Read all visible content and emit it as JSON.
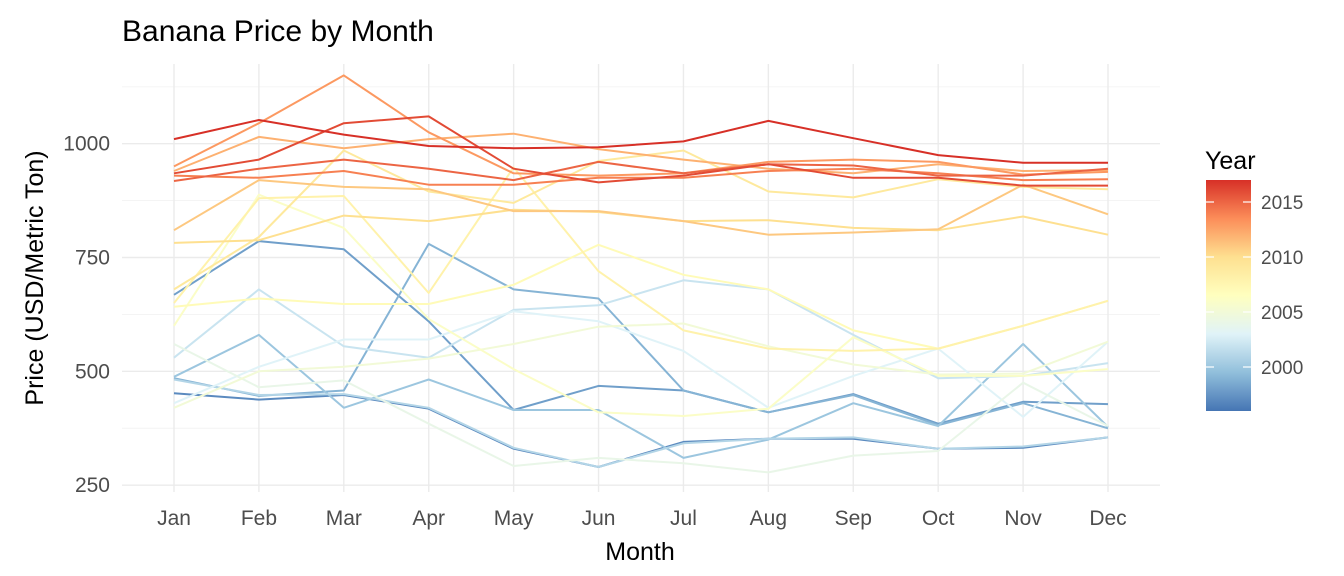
{
  "chart_data": {
    "type": "line",
    "title": "Banana Price by Month",
    "xlabel": "Month",
    "ylabel": "Price (USD/Metric Ton)",
    "categories": [
      "Jan",
      "Feb",
      "Mar",
      "Apr",
      "May",
      "Jun",
      "Jul",
      "Aug",
      "Sep",
      "Oct",
      "Nov",
      "Dec"
    ],
    "ylim": [
      235,
      1175
    ],
    "yticks": [
      250,
      500,
      750,
      1000
    ],
    "grid": true,
    "legend": {
      "title": "Year",
      "placement": "right",
      "type": "colorbar",
      "range": [
        1996,
        2017
      ],
      "ticks": [
        2000,
        2005,
        2010,
        2015
      ],
      "colors": [
        "#4575b4",
        "#91bfdb",
        "#e0f3f8",
        "#ffffbf",
        "#fee090",
        "#fc8d59",
        "#d73027"
      ]
    },
    "series": [
      {
        "year": 1997,
        "values": [
          452,
          438,
          448,
          418,
          330,
          290,
          345,
          352,
          352,
          330,
          332,
          355
        ]
      },
      {
        "year": 1998,
        "values": [
          668,
          786,
          768,
          610,
          415,
          468,
          458,
          410,
          450,
          385,
          433,
          428
        ]
      },
      {
        "year": 1999,
        "values": [
          485,
          446,
          458,
          780,
          680,
          660,
          458,
          410,
          448,
          382,
          430,
          375
        ]
      },
      {
        "year": 2000,
        "values": [
          488,
          580,
          420,
          482,
          415,
          415,
          310,
          350,
          430,
          380,
          560,
          378
        ]
      },
      {
        "year": 2001,
        "values": [
          482,
          448,
          450,
          420,
          332,
          290,
          342,
          352,
          355,
          330,
          335,
          355
        ]
      },
      {
        "year": 2002,
        "values": [
          530,
          680,
          555,
          530,
          635,
          645,
          700,
          680,
          580,
          485,
          490,
          518
        ]
      },
      {
        "year": 2003,
        "values": [
          430,
          510,
          570,
          570,
          632,
          610,
          545,
          420,
          490,
          550,
          400,
          565
        ]
      },
      {
        "year": 2004,
        "values": [
          560,
          465,
          480,
          385,
          292,
          310,
          298,
          278,
          315,
          325,
          475,
          380
        ]
      },
      {
        "year": 2005,
        "values": [
          420,
          500,
          510,
          528,
          560,
          598,
          605,
          555,
          515,
          493,
          495,
          565
        ]
      },
      {
        "year": 2006,
        "values": [
          600,
          888,
          815,
          615,
          505,
          410,
          402,
          418,
          575,
          490,
          490,
          505
        ]
      },
      {
        "year": 2007,
        "values": [
          642,
          660,
          648,
          648,
          690,
          778,
          712,
          680,
          590,
          550,
          600,
          655
        ]
      },
      {
        "year": 2008,
        "values": [
          650,
          880,
          885,
          672,
          948,
          720,
          590,
          550,
          545,
          550,
          600,
          655
        ]
      },
      {
        "year": 2009,
        "values": [
          680,
          795,
          985,
          895,
          870,
          962,
          985,
          895,
          882,
          922,
          905,
          900
        ]
      },
      {
        "year": 2010,
        "values": [
          782,
          788,
          842,
          830,
          855,
          850,
          830,
          832,
          815,
          810,
          840,
          800
        ]
      },
      {
        "year": 2011,
        "values": [
          810,
          920,
          905,
          900,
          852,
          852,
          830,
          800,
          805,
          812,
          910,
          845
        ]
      },
      {
        "year": 2012,
        "values": [
          940,
          1015,
          990,
          1010,
          1022,
          988,
          965,
          945,
          935,
          955,
          940,
          942
        ]
      },
      {
        "year": 2013,
        "values": [
          950,
          1045,
          1150,
          1025,
          935,
          930,
          935,
          960,
          965,
          960,
          932,
          938
        ]
      },
      {
        "year": 2014,
        "values": [
          930,
          925,
          940,
          910,
          910,
          925,
          925,
          940,
          945,
          935,
          920,
          922
        ]
      },
      {
        "year": 2015,
        "values": [
          918,
          945,
          965,
          945,
          920,
          960,
          935,
          955,
          952,
          930,
          930,
          945
        ]
      },
      {
        "year": 2016,
        "values": [
          935,
          965,
          1045,
          1060,
          945,
          915,
          930,
          955,
          925,
          925,
          908,
          908
        ]
      },
      {
        "year": 2017,
        "values": [
          1010,
          1052,
          1020,
          995,
          990,
          992,
          1005,
          1050,
          1012,
          975,
          958,
          958
        ]
      }
    ]
  }
}
